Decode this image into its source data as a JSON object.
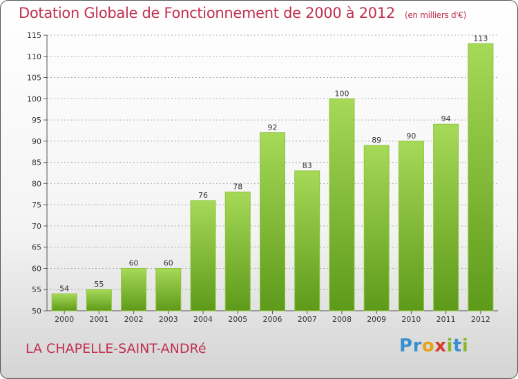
{
  "header": {
    "title": "Dotation Globale de Fonctionnement de 2000 à 2012",
    "unit": "(en milliers d'€)"
  },
  "footer": {
    "commune": "LA CHAPELLE-SAINT-ANDRé",
    "brand_letters": [
      "P",
      "r",
      "o",
      "x",
      "i",
      "t",
      "i"
    ],
    "brand_colors": [
      "#3a8fd0",
      "#3a8fd0",
      "#e8a21a",
      "#d83b2a",
      "#88b82e",
      "#3a8fd0",
      "#88b82e"
    ]
  },
  "colors": {
    "bar_top": "#a6d957",
    "bar_bottom": "#5e9a1a",
    "bar_edge": "#8fc43f",
    "axis": "#555555",
    "grid": "#aaaaaa"
  },
  "chart_data": {
    "type": "bar",
    "title": "Dotation Globale de Fonctionnement de 2000 à 2012",
    "subtitle": "(en milliers d'€)",
    "categories": [
      "2000",
      "2001",
      "2002",
      "2003",
      "2004",
      "2005",
      "2006",
      "2007",
      "2008",
      "2009",
      "2010",
      "2011",
      "2012"
    ],
    "values": [
      54,
      55,
      60,
      60,
      76,
      78,
      92,
      83,
      100,
      89,
      90,
      94,
      113
    ],
    "ylim": [
      50,
      115
    ],
    "yticks": [
      50,
      55,
      60,
      65,
      70,
      75,
      80,
      85,
      90,
      95,
      100,
      105,
      110,
      115
    ],
    "grid": true,
    "data_labels": true
  }
}
